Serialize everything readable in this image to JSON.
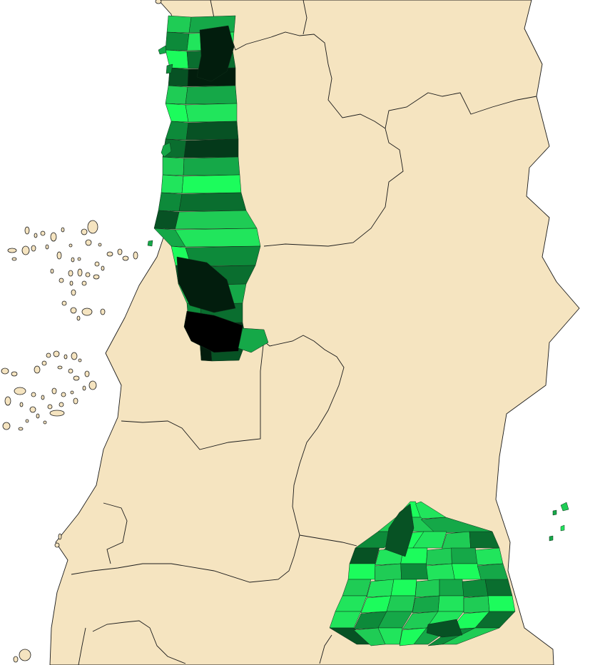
{
  "palette": {
    "background": "#ffffff",
    "land": "#f5e4c0",
    "border": "#1a1a1a",
    "level_0": "#1cfc5c",
    "level_1": "#21e55c",
    "level_2": "#1fcc55",
    "level_3": "#15a848",
    "level_4": "#0d8a3a",
    "level_5": "#0a6e2f",
    "level_6": "#075224",
    "level_7": "#04391a",
    "level_8": "#021d0d",
    "level_9": "#000000"
  },
  "choropleth": {
    "north_cluster_levels": [
      2,
      3,
      4,
      1,
      0,
      5,
      6,
      8,
      2,
      3,
      0,
      1,
      4,
      6,
      5,
      7,
      2,
      3,
      1,
      0,
      4,
      5,
      6,
      2,
      3,
      1,
      0,
      4,
      6,
      5,
      2,
      3,
      4,
      5,
      6,
      7,
      8,
      6,
      5,
      4,
      9,
      6,
      5,
      3
    ],
    "south_cluster_levels": [
      0,
      1,
      2,
      3,
      4,
      0,
      1,
      2,
      5,
      6,
      1,
      0,
      2,
      3,
      1,
      0,
      2,
      4,
      1,
      0,
      3,
      2,
      1,
      0,
      2,
      3,
      4,
      5,
      1,
      0,
      2,
      3,
      1,
      2,
      0,
      1,
      4,
      3,
      2,
      1,
      0,
      5,
      6,
      2,
      1,
      0,
      3,
      4,
      2,
      1,
      0
    ],
    "islands_levels": [
      2,
      3,
      1
    ]
  }
}
